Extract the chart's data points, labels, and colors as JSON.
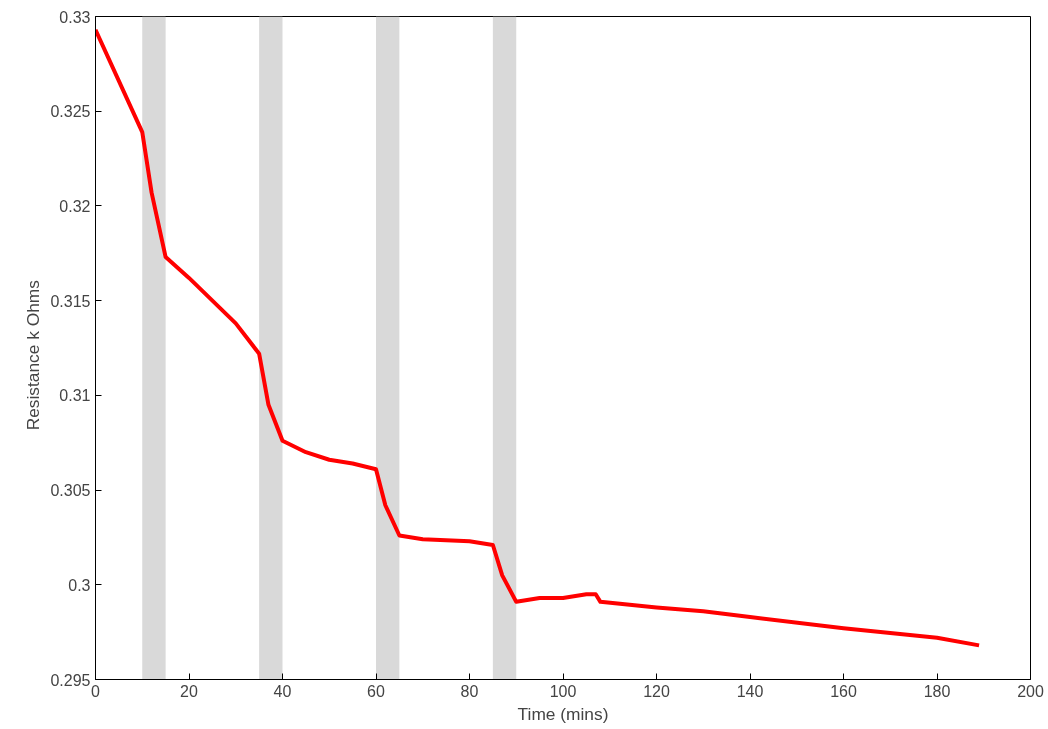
{
  "chart_data": {
    "type": "line",
    "xlabel": "Time (mins)",
    "ylabel": "Resistance    k Ohms",
    "xlim": [
      0,
      200
    ],
    "ylim": [
      0.295,
      0.33
    ],
    "xticks": [
      0,
      20,
      40,
      60,
      80,
      100,
      120,
      140,
      160,
      180,
      200
    ],
    "yticks": [
      0.295,
      0.3,
      0.305,
      0.31,
      0.315,
      0.32,
      0.325,
      0.33
    ],
    "grid": false,
    "bands": [
      {
        "axis": "x",
        "from": 10,
        "to": 15,
        "color": "#d9d9d9"
      },
      {
        "axis": "x",
        "from": 35,
        "to": 40,
        "color": "#d9d9d9"
      },
      {
        "axis": "x",
        "from": 60,
        "to": 65,
        "color": "#d9d9d9"
      },
      {
        "axis": "x",
        "from": 85,
        "to": 90,
        "color": "#d9d9d9"
      }
    ],
    "series": [
      {
        "color": "#ff0000",
        "x": [
          0,
          10,
          12,
          15,
          20,
          30,
          35,
          37,
          40,
          45,
          50,
          55,
          60,
          62,
          65,
          70,
          80,
          85,
          87,
          90,
          95,
          100,
          105,
          107,
          108,
          120,
          130,
          140,
          160,
          180,
          189
        ],
        "values": [
          0.3293,
          0.3239,
          0.3207,
          0.3173,
          0.3162,
          0.3138,
          0.3122,
          0.3095,
          0.3076,
          0.307,
          0.3066,
          0.3064,
          0.3061,
          0.3042,
          0.3026,
          0.3024,
          0.3023,
          0.3021,
          0.3005,
          0.2991,
          0.2993,
          0.2993,
          0.2995,
          0.2995,
          0.2991,
          0.2988,
          0.2986,
          0.2983,
          0.2977,
          0.2972,
          0.2968
        ]
      }
    ]
  }
}
